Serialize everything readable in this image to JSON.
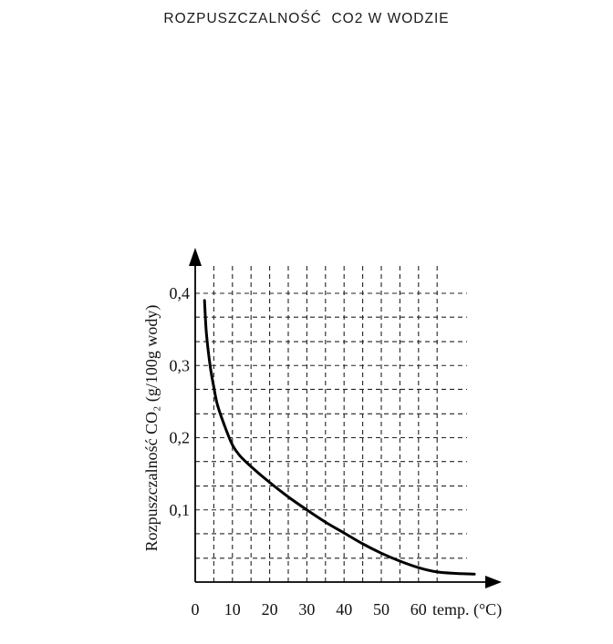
{
  "page": {
    "title": "ROZPUSZCZALNOŚĆ  CO2 W WODZIE"
  },
  "chart_data": {
    "type": "line",
    "title": "ROZPUSZCZALNOŚĆ  CO2 W WODZIE",
    "xlabel": "temp. (°C)",
    "ylabel": "Rozpuszczalność CO₂ (g/100g wody)",
    "xlim": [
      0,
      75
    ],
    "ylim": [
      0,
      0.4
    ],
    "x_ticks": [
      0,
      10,
      20,
      30,
      40,
      50,
      60
    ],
    "x_tick_labels": [
      "0",
      "10",
      "20",
      "30",
      "40",
      "50",
      "60"
    ],
    "y_ticks": [
      0.1,
      0.2,
      0.3,
      0.4
    ],
    "y_tick_labels": [
      "0,1",
      "0,2",
      "0,3",
      "0,4"
    ],
    "x_minor_ticks": [
      5,
      15,
      25,
      35,
      45,
      55,
      65
    ],
    "y_minor_ticks": [
      0.033,
      0.067,
      0.133,
      0.167,
      0.233,
      0.267,
      0.333,
      0.367
    ],
    "grid": true,
    "grid_style": "dashed",
    "series": [
      {
        "color": "#000000",
        "x": [
          2.5,
          3,
          4,
          5,
          6,
          8,
          10,
          12,
          15,
          20,
          25,
          30,
          35,
          40,
          45,
          50,
          55,
          60,
          65,
          70,
          75
        ],
        "y": [
          0.39,
          0.345,
          0.3,
          0.27,
          0.245,
          0.215,
          0.19,
          0.175,
          0.16,
          0.138,
          0.118,
          0.1,
          0.083,
          0.068,
          0.053,
          0.04,
          0.029,
          0.02,
          0.014,
          0.012,
          0.011
        ]
      }
    ]
  }
}
